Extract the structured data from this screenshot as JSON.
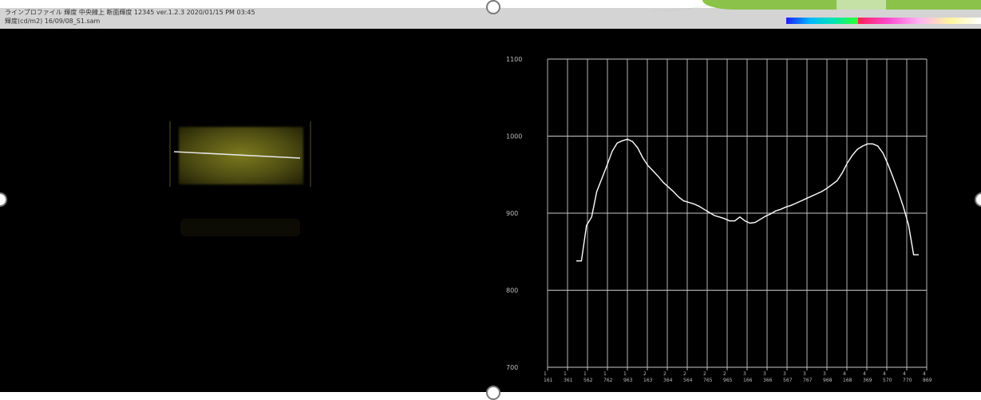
{
  "window": {
    "title_line_1": "ラインプロファイル 輝度 中央線上 断面輝度 12345 ver.1.2.3 2020/01/15 PM 03:45",
    "title_line_2": "輝度(cd/m2)  16/09/08_S1.sam"
  },
  "colors": {
    "plot_background": "#000000",
    "plot_line": "#ffffff",
    "grid": "#c8c8c8",
    "sample_glow": "#7c7a1e",
    "window_bar": "#d4d4d4",
    "decoration_green": "#8bc34a"
  },
  "icons": {
    "resize_handles": "circle-handle-icon",
    "color_legend": "color-scale-bar"
  },
  "chart_data": {
    "type": "line",
    "title": "",
    "xlabel": "",
    "ylabel": "",
    "ylim": [
      700,
      1100
    ],
    "y_ticks": [
      "700",
      "800",
      "900",
      "1000",
      "1100"
    ],
    "x_tick_labels": [
      "1 161",
      "1 361",
      "1 562",
      "1 762",
      "1 963",
      "2 163",
      "2 364",
      "2 564",
      "2 765",
      "2 965",
      "3 166",
      "3 366",
      "3 567",
      "3 767",
      "3 968",
      "4 168",
      "4 369",
      "4 570",
      "4 770",
      "4 869"
    ],
    "grid": true,
    "legend": "none",
    "series": [
      {
        "values": [
          838,
          838,
          884,
          895,
          928,
          945,
          962,
          980,
          991,
          994,
          996,
          993,
          985,
          972,
          962,
          955,
          948,
          940,
          934,
          928,
          921,
          916,
          914,
          912,
          909,
          905,
          901,
          897,
          895,
          893,
          890,
          890,
          895,
          890,
          887,
          888,
          892,
          896,
          899,
          903,
          905,
          908,
          910,
          913,
          916,
          919,
          922,
          925,
          928,
          932,
          937,
          942,
          952,
          965,
          975,
          983,
          987,
          990,
          990,
          987,
          978,
          963,
          946,
          928,
          908,
          885,
          846,
          846
        ]
      }
    ]
  }
}
